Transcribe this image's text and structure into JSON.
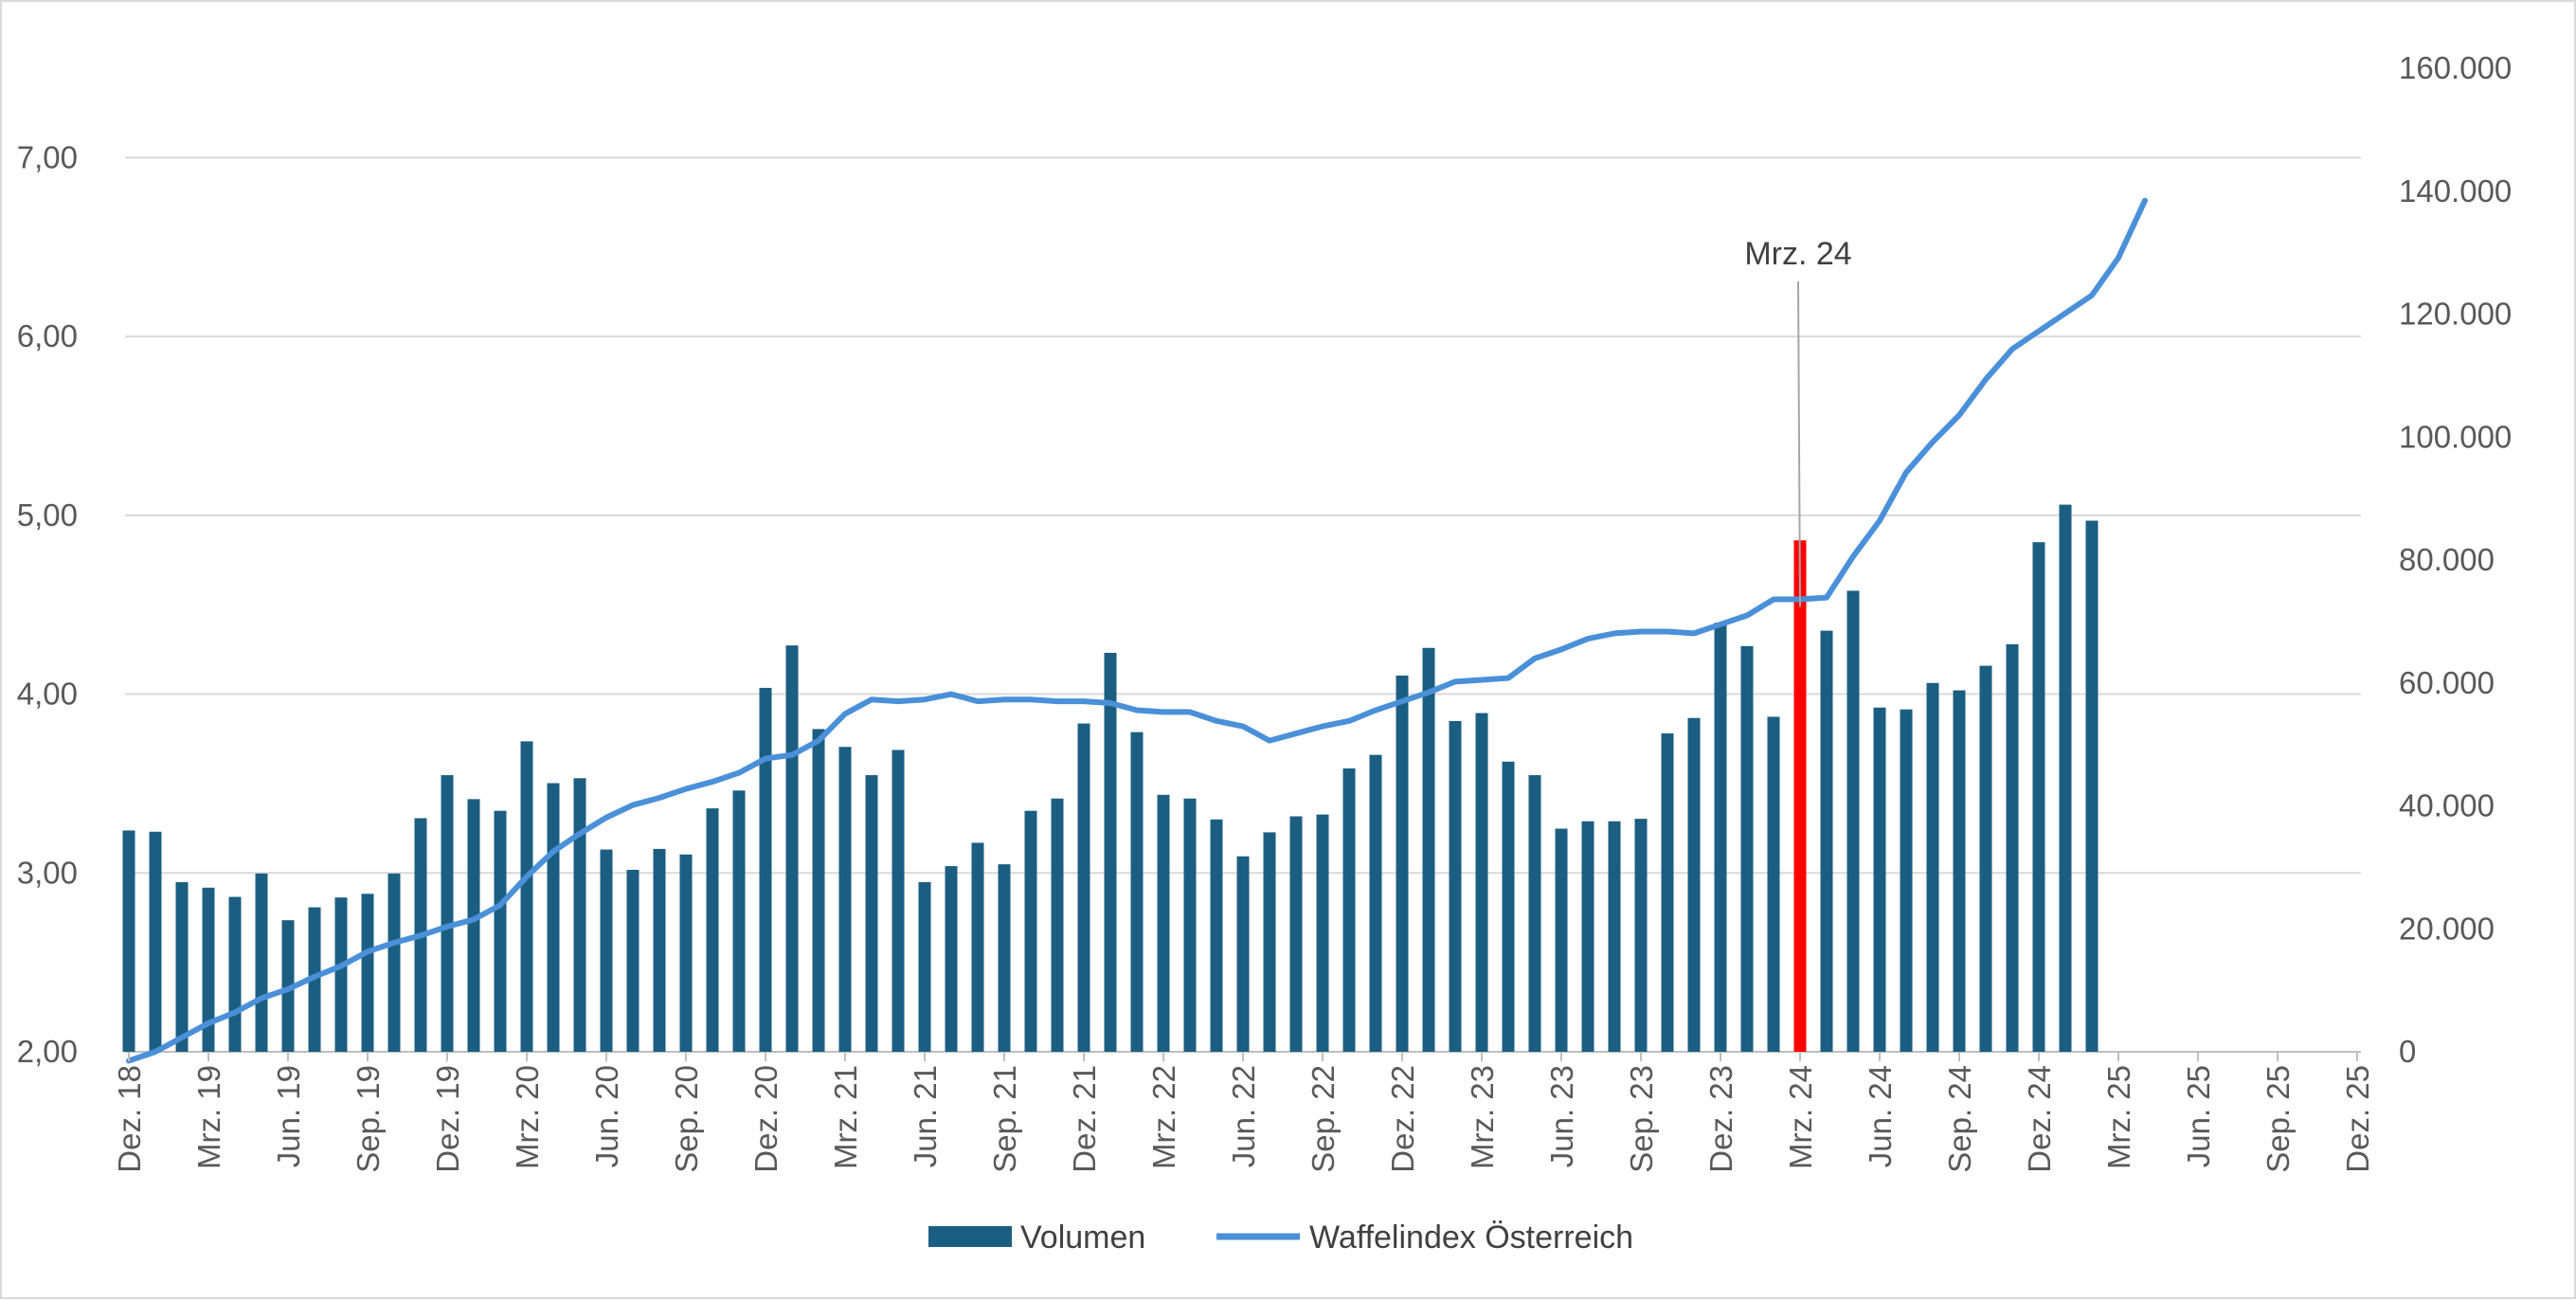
{
  "chart_data": {
    "type": "bar",
    "x_tick_labels": [
      "Dez. 18",
      "Mrz. 19",
      "Jun. 19",
      "Sep. 19",
      "Dez. 19",
      "Mrz. 20",
      "Jun. 20",
      "Sep. 20",
      "Dez. 20",
      "Mrz. 21",
      "Jun. 21",
      "Sep. 21",
      "Dez. 21",
      "Mrz. 22",
      "Jun. 22",
      "Sep. 22",
      "Dez. 22",
      "Mrz. 23",
      "Jun. 23",
      "Sep. 23",
      "Dez. 23",
      "Mrz. 24",
      "Jun. 24",
      "Sep. 24",
      "Dez. 24",
      "Mrz. 25",
      "Jun. 25",
      "Sep. 25",
      "Dez. 25"
    ],
    "x_start": "Dez. 18",
    "y_left": {
      "ticks": [
        "2,00",
        "3,00",
        "4,00",
        "5,00",
        "6,00",
        "7,00"
      ],
      "ylim": [
        2,
        7.5
      ]
    },
    "y_right": {
      "ticks": [
        "0",
        "20.000",
        "40.000",
        "60.000",
        "80.000",
        "100.000",
        "120.000",
        "140.000",
        "160.000"
      ],
      "ylim": [
        0,
        160000
      ]
    },
    "grid": true,
    "legend_position": "bottom",
    "series": [
      {
        "name": "Volumen",
        "type": "bar",
        "axis": "right",
        "color": "#1b5e82",
        "highlight_color": "#ff0000",
        "highlight_label": "Mrz. 24",
        "values": [
          36000,
          35800,
          27600,
          26700,
          25200,
          29000,
          21400,
          23500,
          25100,
          25700,
          29000,
          38000,
          45000,
          41100,
          39200,
          50500,
          43700,
          44500,
          32900,
          29600,
          33000,
          32100,
          39600,
          42500,
          59200,
          66100,
          52500,
          49600,
          45000,
          49100,
          27600,
          30200,
          34000,
          30500,
          39200,
          41200,
          53400,
          64900,
          52000,
          41800,
          41200,
          37800,
          31800,
          35700,
          38300,
          38600,
          46100,
          48300,
          61200,
          65700,
          53800,
          55100,
          47200,
          45000,
          36300,
          37500,
          37500,
          37900,
          51800,
          54300,
          69800,
          66000,
          54500,
          83200,
          68500,
          75000,
          56000,
          55700,
          60000,
          58800,
          62800,
          66300,
          82900,
          89000,
          86400
        ]
      },
      {
        "name": "Waffelindex Österreich",
        "type": "line",
        "axis": "left",
        "color": "#4a90d9",
        "values": [
          1.95,
          2.0,
          2.08,
          2.16,
          2.22,
          2.3,
          2.35,
          2.42,
          2.48,
          2.56,
          2.61,
          2.65,
          2.7,
          2.74,
          2.82,
          2.98,
          3.12,
          3.22,
          3.31,
          3.38,
          3.42,
          3.47,
          3.51,
          3.56,
          3.64,
          3.66,
          3.74,
          3.89,
          3.97,
          3.96,
          3.97,
          4.0,
          3.96,
          3.97,
          3.97,
          3.96,
          3.96,
          3.95,
          3.91,
          3.9,
          3.9,
          3.85,
          3.82,
          3.74,
          3.78,
          3.82,
          3.85,
          3.91,
          3.96,
          4.01,
          4.07,
          4.08,
          4.09,
          4.2,
          4.25,
          4.31,
          4.34,
          4.35,
          4.35,
          4.34,
          4.39,
          4.44,
          4.53,
          4.53,
          4.54,
          4.77,
          4.97,
          5.24,
          5.41,
          5.56,
          5.76,
          5.93,
          6.03,
          6.13,
          6.23,
          6.44,
          6.76
        ]
      }
    ],
    "annotation": {
      "label": "Mrz. 24"
    }
  }
}
